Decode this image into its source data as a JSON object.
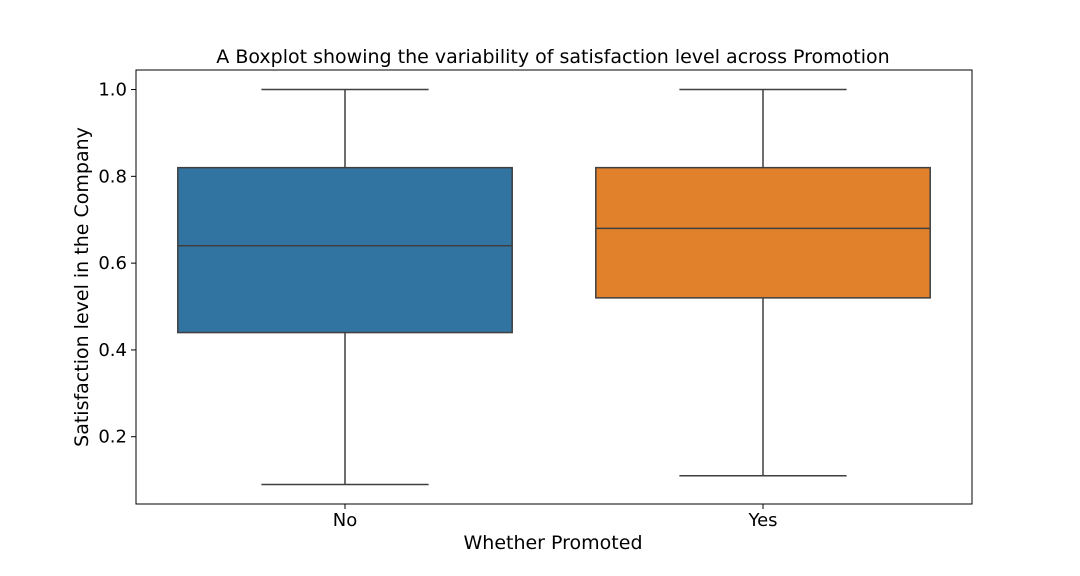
{
  "chart_data": {
    "type": "boxplot",
    "title": "A Boxplot showing the variability of satisfaction level across Promotion",
    "xlabel": "Whether Promoted",
    "ylabel": "Satisfaction level in the Company",
    "categories": [
      "No",
      "Yes"
    ],
    "ylim": [
      0.045,
      1.045
    ],
    "yticks": [
      0.2,
      0.4,
      0.6,
      0.8,
      1.0
    ],
    "ytick_labels": [
      "0.2",
      "0.4",
      "0.6",
      "0.8",
      "1.0"
    ],
    "grid": false,
    "boxes": [
      {
        "category": "No",
        "whisker_low": 0.09,
        "q1": 0.44,
        "median": 0.64,
        "q3": 0.82,
        "whisker_high": 1.0,
        "color": "#3274a1"
      },
      {
        "category": "Yes",
        "whisker_low": 0.11,
        "q1": 0.52,
        "median": 0.68,
        "q3": 0.82,
        "whisker_high": 1.0,
        "color": "#e1812c"
      }
    ]
  }
}
